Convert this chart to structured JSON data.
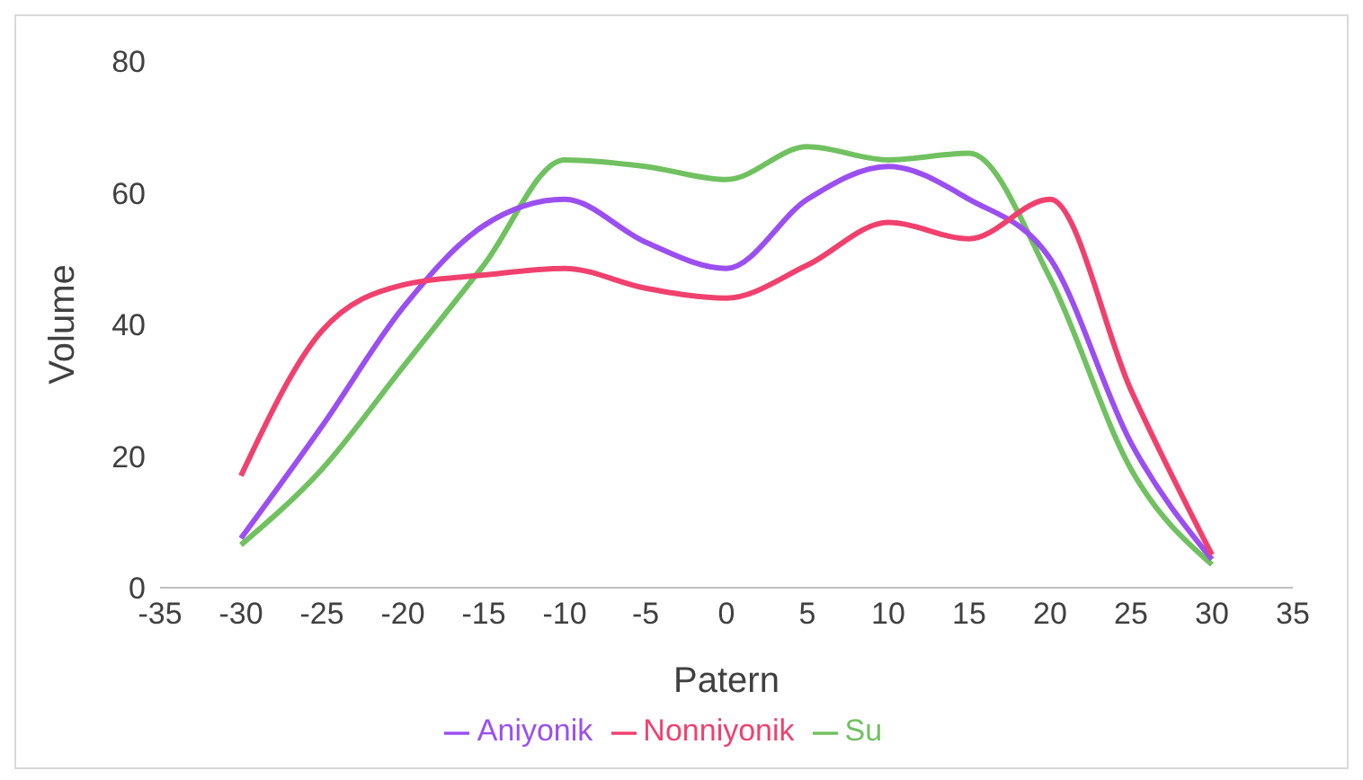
{
  "chart_data": {
    "type": "line",
    "xlabel": "Patern",
    "ylabel": "Volume",
    "x": [
      -30,
      -25,
      -20,
      -15,
      -10,
      -5,
      0,
      5,
      10,
      15,
      20,
      25,
      30
    ],
    "series": [
      {
        "name": "Su",
        "color": "#70c160",
        "values": [
          6.5,
          18,
          33.5,
          49,
          65,
          64,
          62,
          67,
          65,
          66,
          47,
          18,
          3.5
        ]
      },
      {
        "name": "Aniyonik",
        "color": "#9b4ff0",
        "values": [
          7.5,
          24.5,
          42.5,
          55,
          59,
          52.5,
          48.5,
          59,
          64,
          59,
          50,
          22,
          4.3
        ]
      },
      {
        "name": "Nonniyonik",
        "color": "#f0416e",
        "values": [
          17,
          39,
          46,
          47.5,
          48.5,
          45.5,
          44,
          49,
          55.5,
          53,
          59,
          30,
          5
        ]
      }
    ],
    "xlim": [
      -35,
      35
    ],
    "xticks": [
      -35,
      -30,
      -25,
      -20,
      -15,
      -10,
      -5,
      0,
      5,
      10,
      15,
      20,
      25,
      30,
      35
    ],
    "ylim": [
      0,
      80
    ],
    "yticks": [
      0,
      20,
      40,
      60,
      80
    ],
    "grid": false,
    "legend": "bottom",
    "marker": "none",
    "line_style": "solid"
  }
}
